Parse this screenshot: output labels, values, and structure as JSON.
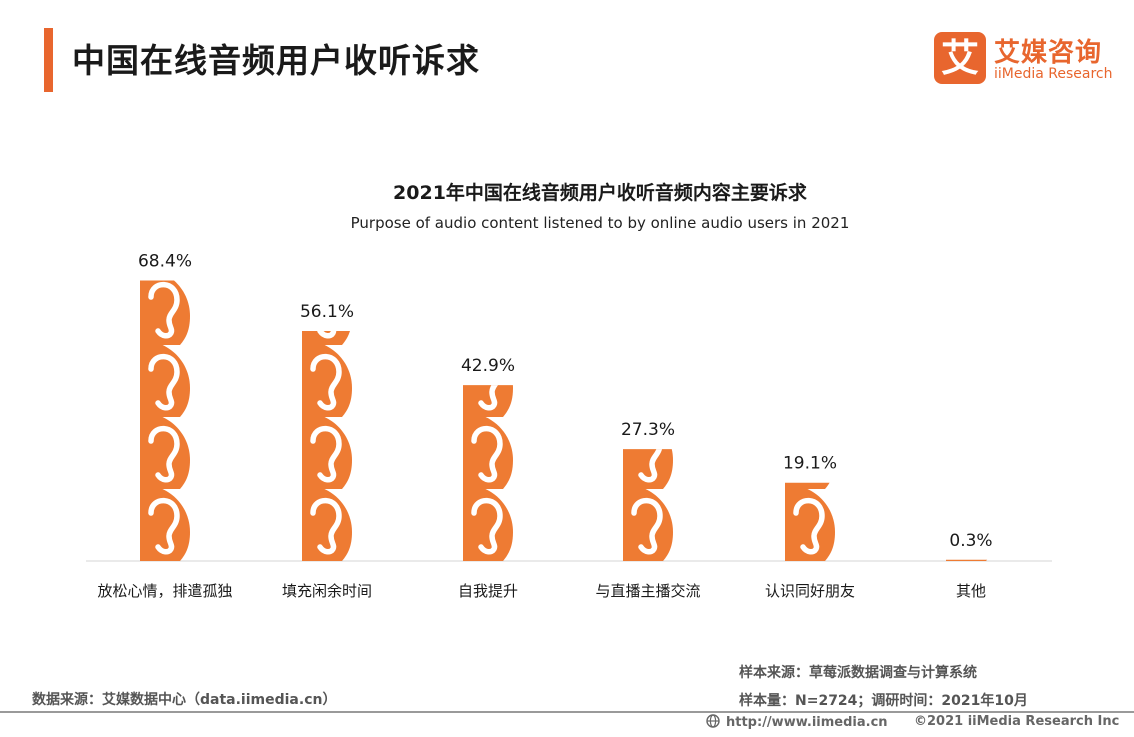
{
  "page": {
    "title": "中国在线音频用户收听诉求",
    "logo_mark": "艾",
    "logo_cn": "艾媒咨询",
    "logo_en": "iiMedia Research",
    "accent_color": "#e8662e"
  },
  "chart_data": {
    "type": "bar",
    "title": "2021年中国在线音频用户收听音频内容主要诉求",
    "subtitle": "Purpose of audio content listened to by online audio users in 2021",
    "categories": [
      "放松心情，排遣孤独",
      "填充闲余时间",
      "自我提升",
      "与直播主播交流",
      "认识同好朋友",
      "其他"
    ],
    "values": [
      68.4,
      56.1,
      42.9,
      27.3,
      19.1,
      0.3
    ],
    "value_labels": [
      "68.4%",
      "56.1%",
      "42.9%",
      "27.3%",
      "19.1%",
      "0.3%"
    ],
    "unit": "%",
    "ylim": [
      0,
      70
    ],
    "grid": false,
    "legend": "none",
    "bar_style": "stacked ear icons (pictograph)",
    "color": "#ee7b33"
  },
  "footer": {
    "source": "数据来源：艾媒数据中心（data.iimedia.cn）",
    "sample_source": "样本来源：草莓派数据调查与计算系统",
    "sample_size": "样本量：N=2724；调研时间：2021年10月",
    "url": "http://www.iimedia.cn",
    "copyright": "©2021  iiMedia Research  Inc"
  }
}
